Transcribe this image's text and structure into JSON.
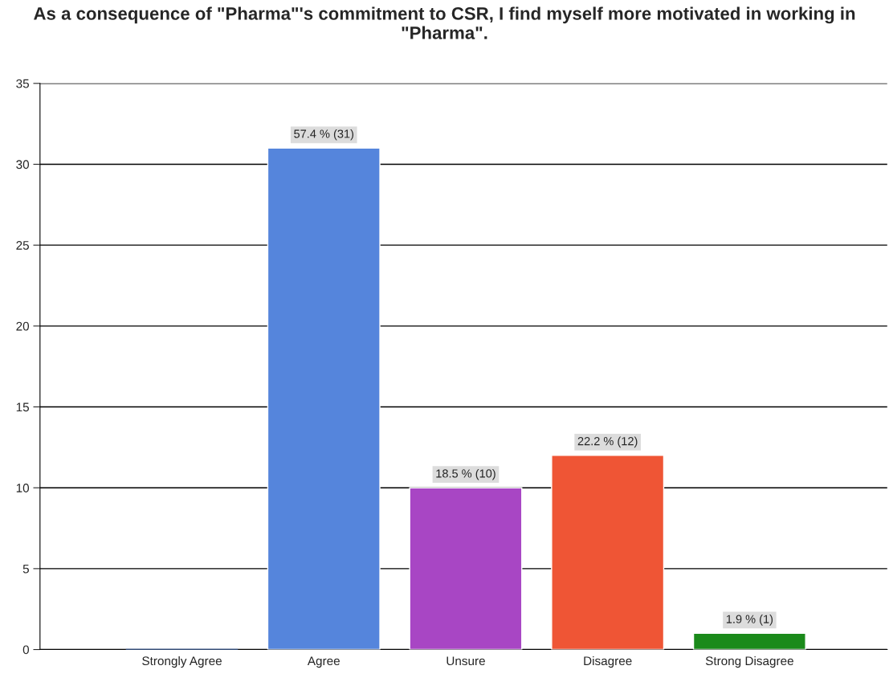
{
  "chart_data": {
    "type": "bar",
    "title": "As a consequence of \"Pharma\"'s commitment to CSR, I find myself more motivated in working in \"Pharma\".",
    "categories": [
      "Strongly Agree",
      "Agree",
      "Unsure",
      "Disagree",
      "Strong Disagree"
    ],
    "values": [
      0,
      31,
      10,
      12,
      1
    ],
    "colors": [
      "#5585dc",
      "#5585dc",
      "#a846c4",
      "#ef5535",
      "#1a8a1a"
    ],
    "value_labels": [
      null,
      "57.4 % (31)",
      "18.5 % (10)",
      "22.2 % (12)",
      "1.9 % (1)"
    ],
    "ylim": [
      0,
      35
    ],
    "yticks": [
      0,
      5,
      10,
      15,
      20,
      25,
      30,
      35
    ],
    "grid": "y",
    "legend": false
  }
}
